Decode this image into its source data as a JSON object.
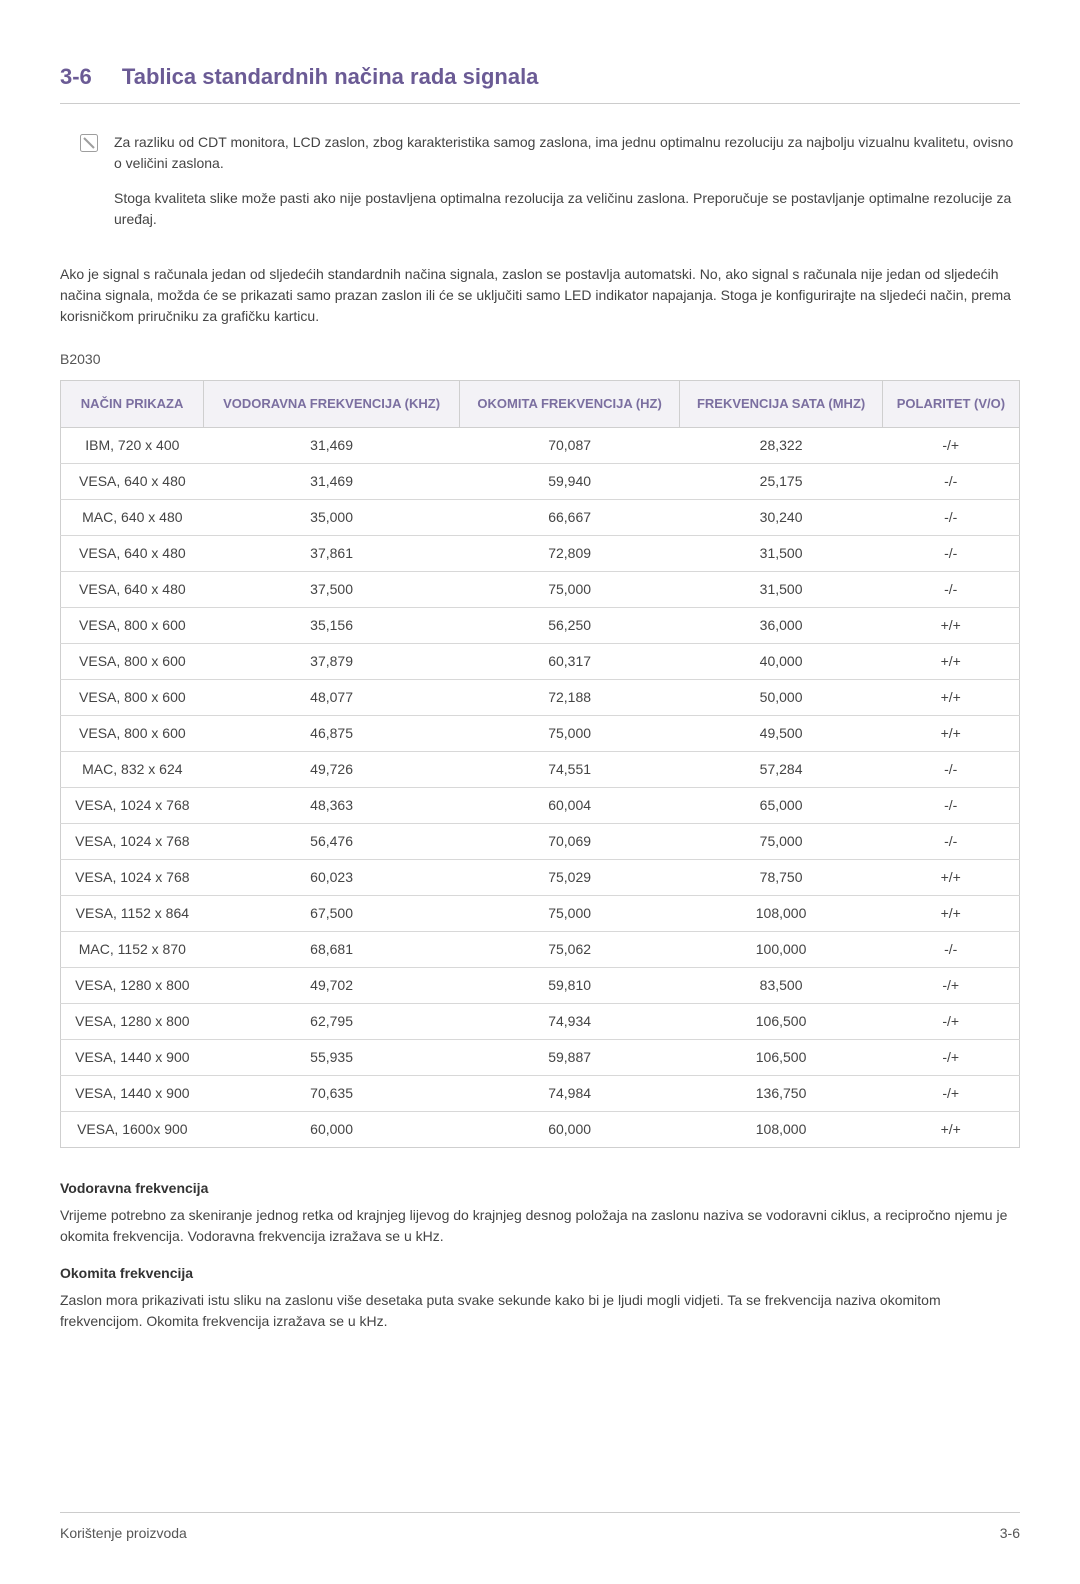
{
  "section": {
    "number": "3-6",
    "title": "Tablica standardnih načina rada signala"
  },
  "note": {
    "p1": "Za razliku od CDT monitora, LCD zaslon, zbog karakteristika samog zaslona, ima jednu optimalnu rezoluciju za najbolju vizualnu kvalitetu, ovisno o veličini zaslona.",
    "p2": "Stoga kvaliteta slike može pasti ako nije postavljena optimalna rezolucija za veličinu zaslona. Preporučuje se postavljanje optimalne rezolucije za uređaj."
  },
  "intro": "Ako je signal s računala jedan od sljedećih standardnih načina signala, zaslon se postavlja automatski. No, ako signal s računala nije jedan od sljedećih načina signala, možda će se prikazati samo prazan zaslon ili će se uključiti samo LED indikator napajanja. Stoga je konfigurirajte na sljedeći način, prema korisničkom priručniku za grafičku karticu.",
  "model": "B2030",
  "table": {
    "columns": [
      "NAČIN PRIKAZA",
      "VODORAVNA FREKVENCIJA (KHZ)",
      "OKOMITA FREKVENCIJA (HZ)",
      "FREKVENCIJA SATA (MHZ)",
      "POLARITET (V/O)"
    ],
    "rows": [
      [
        "IBM, 720 x 400",
        "31,469",
        "70,087",
        "28,322",
        "-/+"
      ],
      [
        "VESA, 640 x 480",
        "31,469",
        "59,940",
        "25,175",
        "-/-"
      ],
      [
        "MAC, 640 x 480",
        "35,000",
        "66,667",
        "30,240",
        "-/-"
      ],
      [
        "VESA, 640 x 480",
        "37,861",
        "72,809",
        "31,500",
        "-/-"
      ],
      [
        "VESA, 640 x 480",
        "37,500",
        "75,000",
        "31,500",
        "-/-"
      ],
      [
        "VESA, 800 x 600",
        "35,156",
        "56,250",
        "36,000",
        "+/+"
      ],
      [
        "VESA, 800 x 600",
        "37,879",
        "60,317",
        "40,000",
        "+/+"
      ],
      [
        "VESA, 800 x 600",
        "48,077",
        "72,188",
        "50,000",
        "+/+"
      ],
      [
        "VESA, 800 x 600",
        "46,875",
        "75,000",
        "49,500",
        "+/+"
      ],
      [
        "MAC, 832 x 624",
        "49,726",
        "74,551",
        "57,284",
        "-/-"
      ],
      [
        "VESA, 1024 x 768",
        "48,363",
        "60,004",
        "65,000",
        "-/-"
      ],
      [
        "VESA, 1024 x 768",
        "56,476",
        "70,069",
        "75,000",
        "-/-"
      ],
      [
        "VESA, 1024 x 768",
        "60,023",
        "75,029",
        "78,750",
        "+/+"
      ],
      [
        "VESA, 1152 x 864",
        "67,500",
        "75,000",
        "108,000",
        "+/+"
      ],
      [
        "MAC, 1152 x 870",
        "68,681",
        "75,062",
        "100,000",
        "-/-"
      ],
      [
        "VESA, 1280 x 800",
        "49,702",
        "59,810",
        "83,500",
        "-/+"
      ],
      [
        "VESA, 1280 x 800",
        "62,795",
        "74,934",
        "106,500",
        "-/+"
      ],
      [
        "VESA, 1440 x 900",
        "55,935",
        "59,887",
        "106,500",
        "-/+"
      ],
      [
        "VESA, 1440 x 900",
        "70,635",
        "74,984",
        "136,750",
        "-/+"
      ],
      [
        "VESA, 1600x 900",
        "60,000",
        "60,000",
        "108,000",
        "+/+"
      ]
    ],
    "header_color": "#7b6fa0",
    "header_bg": "#f3f2f6",
    "border_color": "#cfcfcf",
    "row_border": "#d8d8d8"
  },
  "definitions": {
    "h1": "Vodoravna frekvencija",
    "p1": "Vrijeme potrebno za skeniranje jednog retka od krajnjeg lijevog do krajnjeg desnog položaja na zaslonu naziva se vodoravni ciklus, a recipročno njemu je okomita frekvencija. Vodoravna frekvencija izražava se u kHz.",
    "h2": "Okomita frekvencija",
    "p2": "Zaslon mora prikazivati istu sliku na zaslonu više desetaka puta svake sekunde kako bi je ljudi mogli vidjeti. Ta se frekvencija naziva okomitom frekvencijom. Okomita frekvencija izražava se u kHz."
  },
  "footer": {
    "left": "Korištenje proizvoda",
    "right": "3-6"
  }
}
